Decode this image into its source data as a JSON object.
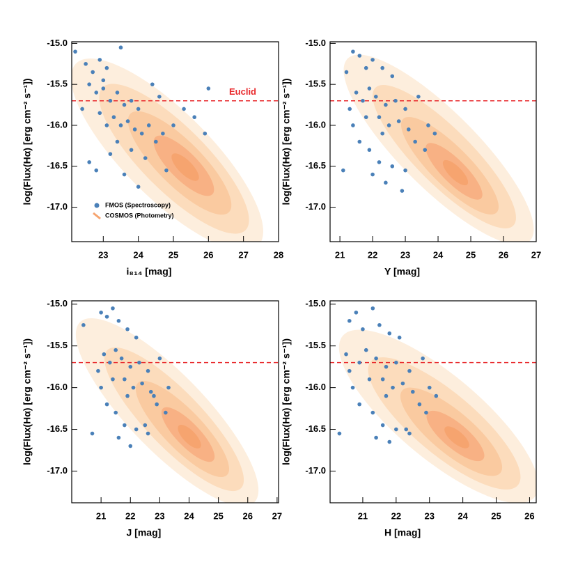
{
  "chart_data": [
    {
      "type": "scatter",
      "xlabel": "i₈₁₄ [mag]",
      "ylabel": "log(Flux(Hα) [erg cm⁻² s⁻¹])",
      "xlim": [
        22.1,
        28
      ],
      "ylim": [
        -17.42,
        -14.98
      ],
      "xticks": [
        23,
        24,
        25,
        26,
        27,
        28
      ],
      "yticks": [
        {
          "value": -15,
          "label": "-15.0"
        },
        {
          "value": -15.5,
          "label": "-15.5"
        },
        {
          "value": -16,
          "label": "-16.0"
        },
        {
          "value": -16.5,
          "label": "-16.5"
        },
        {
          "value": -17,
          "label": "-17.0"
        }
      ],
      "hline": {
        "value": -15.7,
        "label": "Euclid",
        "color": "#e8282b"
      },
      "contour_name": "COSMOS (Photometry)",
      "contour_color": "#f6a46f",
      "series": [
        {
          "name": "FMOS (Spectroscopy)",
          "color": "#4a80b8",
          "x": [
            22.2,
            22.5,
            22.7,
            22.9,
            23.1,
            23.5,
            22.6,
            22.8,
            23.0,
            23.2,
            23.4,
            23.6,
            23.8,
            24.0,
            23.3,
            23.5,
            23.7,
            23.9,
            24.1,
            24.3,
            22.9,
            23.1,
            23.4,
            23.8,
            24.2,
            24.5,
            24.7,
            25.0,
            25.3,
            25.6,
            25.9,
            26.0,
            22.6,
            22.8,
            23.6,
            24.0,
            24.4,
            24.6,
            23.0,
            24.8,
            22.4,
            23.2
          ],
          "values": [
            -15.1,
            -15.25,
            -15.35,
            -15.2,
            -15.3,
            -15.05,
            -15.5,
            -15.6,
            -15.55,
            -15.7,
            -15.6,
            -15.75,
            -15.7,
            -15.8,
            -15.9,
            -16.0,
            -15.95,
            -16.05,
            -16.1,
            -16.0,
            -15.85,
            -16.0,
            -16.2,
            -16.3,
            -16.4,
            -16.2,
            -16.1,
            -16.0,
            -15.8,
            -15.9,
            -16.1,
            -15.55,
            -16.45,
            -16.55,
            -16.6,
            -16.75,
            -15.5,
            -15.65,
            -15.45,
            -16.55,
            -15.8,
            -16.35
          ]
        }
      ]
    },
    {
      "type": "scatter",
      "xlabel": "Y [mag]",
      "ylabel": "log(Flux(Hα) [erg cm⁻² s⁻¹])",
      "xlim": [
        20.7,
        27.0
      ],
      "ylim": [
        -17.42,
        -14.98
      ],
      "xticks": [
        21,
        22,
        23,
        24,
        25,
        26,
        27
      ],
      "yticks": [
        {
          "value": -15,
          "label": "-15.0"
        },
        {
          "value": -15.5,
          "label": "-15.5"
        },
        {
          "value": -16,
          "label": "-16.0"
        },
        {
          "value": -16.5,
          "label": "-16.5"
        },
        {
          "value": -17,
          "label": "-17.0"
        }
      ],
      "hline": {
        "value": -15.7,
        "color": "#e8282b"
      },
      "contour_color": "#f6a46f",
      "series": [
        {
          "color": "#4a80b8",
          "x": [
            21.2,
            21.4,
            21.6,
            21.8,
            22.0,
            22.3,
            22.6,
            21.5,
            21.7,
            21.9,
            22.1,
            22.4,
            22.7,
            23.0,
            22.2,
            22.5,
            22.8,
            23.1,
            23.3,
            23.6,
            21.4,
            21.6,
            21.9,
            22.2,
            22.6,
            23.0,
            22.4,
            22.9,
            21.1,
            21.3,
            23.4,
            23.7,
            23.9,
            22.0,
            22.3,
            21.8
          ],
          "values": [
            -15.35,
            -15.1,
            -15.15,
            -15.3,
            -15.2,
            -15.3,
            -15.4,
            -15.6,
            -15.7,
            -15.55,
            -15.65,
            -15.75,
            -15.7,
            -15.8,
            -15.9,
            -16.0,
            -15.95,
            -16.05,
            -16.2,
            -16.3,
            -16.0,
            -16.2,
            -16.3,
            -16.45,
            -16.5,
            -16.55,
            -16.7,
            -16.8,
            -16.55,
            -15.8,
            -15.65,
            -16.0,
            -16.1,
            -16.6,
            -16.1,
            -15.9
          ]
        }
      ]
    },
    {
      "type": "scatter",
      "xlabel": "J [mag]",
      "ylabel": "log(Flux(Hα) [erg cm⁻² s⁻¹])",
      "xlim": [
        20.0,
        27.05
      ],
      "ylim": [
        -17.38,
        -14.96
      ],
      "xticks": [
        21,
        22,
        23,
        24,
        25,
        26,
        27
      ],
      "yticks": [
        {
          "value": -15,
          "label": "-15.0"
        },
        {
          "value": -15.5,
          "label": "-15.5"
        },
        {
          "value": -16,
          "label": "-16.0"
        },
        {
          "value": -16.5,
          "label": "-16.5"
        },
        {
          "value": -17,
          "label": "-17.0"
        }
      ],
      "hline": {
        "value": -15.7,
        "color": "#e8282b"
      },
      "contour_color": "#f6a46f",
      "series": [
        {
          "color": "#4a80b8",
          "x": [
            20.4,
            21.0,
            21.2,
            21.4,
            21.6,
            21.9,
            22.2,
            21.1,
            21.3,
            21.5,
            21.7,
            22.0,
            22.3,
            22.6,
            21.8,
            22.1,
            22.4,
            22.7,
            22.9,
            23.2,
            21.0,
            21.2,
            21.5,
            21.8,
            22.2,
            22.6,
            22.0,
            22.5,
            20.7,
            20.9,
            23.0,
            23.3,
            22.8,
            21.6,
            21.9,
            21.4
          ],
          "values": [
            -15.25,
            -15.1,
            -15.15,
            -15.05,
            -15.2,
            -15.3,
            -15.4,
            -15.6,
            -15.7,
            -15.55,
            -15.65,
            -15.75,
            -15.7,
            -15.8,
            -15.9,
            -16.0,
            -15.95,
            -16.05,
            -16.2,
            -16.3,
            -16.0,
            -16.2,
            -16.3,
            -16.45,
            -16.5,
            -16.55,
            -16.7,
            -16.45,
            -16.55,
            -15.8,
            -15.65,
            -16.0,
            -16.1,
            -16.6,
            -16.1,
            -15.9
          ]
        }
      ]
    },
    {
      "type": "scatter",
      "xlabel": "H [mag]",
      "ylabel": "log(Flux(Hα) [erg cm⁻² s⁻¹])",
      "xlim": [
        20.02,
        26.2
      ],
      "ylim": [
        -17.38,
        -14.96
      ],
      "xticks": [
        21,
        22,
        23,
        24,
        25,
        26
      ],
      "yticks": [
        {
          "value": -15,
          "label": "-15.0"
        },
        {
          "value": -15.5,
          "label": "-15.5"
        },
        {
          "value": -16,
          "label": "-16.0"
        },
        {
          "value": -16.5,
          "label": "-16.5"
        },
        {
          "value": -17,
          "label": "-17.0"
        }
      ],
      "hline": {
        "value": -15.7,
        "color": "#e8282b"
      },
      "contour_color": "#f6a46f",
      "series": [
        {
          "color": "#4a80b8",
          "x": [
            20.6,
            20.8,
            21.0,
            21.3,
            21.5,
            21.8,
            22.1,
            20.5,
            20.9,
            21.1,
            21.4,
            21.7,
            22.0,
            22.4,
            21.6,
            21.9,
            22.2,
            22.5,
            22.7,
            22.9,
            20.7,
            20.9,
            21.3,
            21.6,
            22.0,
            22.4,
            21.8,
            22.3,
            20.3,
            20.6,
            22.8,
            23.0,
            23.2,
            21.4,
            21.7,
            21.2
          ],
          "values": [
            -15.2,
            -15.1,
            -15.3,
            -15.05,
            -15.25,
            -15.35,
            -15.4,
            -15.6,
            -15.7,
            -15.55,
            -15.65,
            -15.75,
            -15.7,
            -15.8,
            -15.9,
            -16.0,
            -15.95,
            -16.05,
            -16.2,
            -16.3,
            -16.0,
            -16.2,
            -16.3,
            -16.45,
            -16.5,
            -16.55,
            -16.65,
            -16.5,
            -16.55,
            -15.8,
            -15.65,
            -16.0,
            -16.1,
            -16.6,
            -16.1,
            -15.9
          ]
        }
      ]
    }
  ]
}
